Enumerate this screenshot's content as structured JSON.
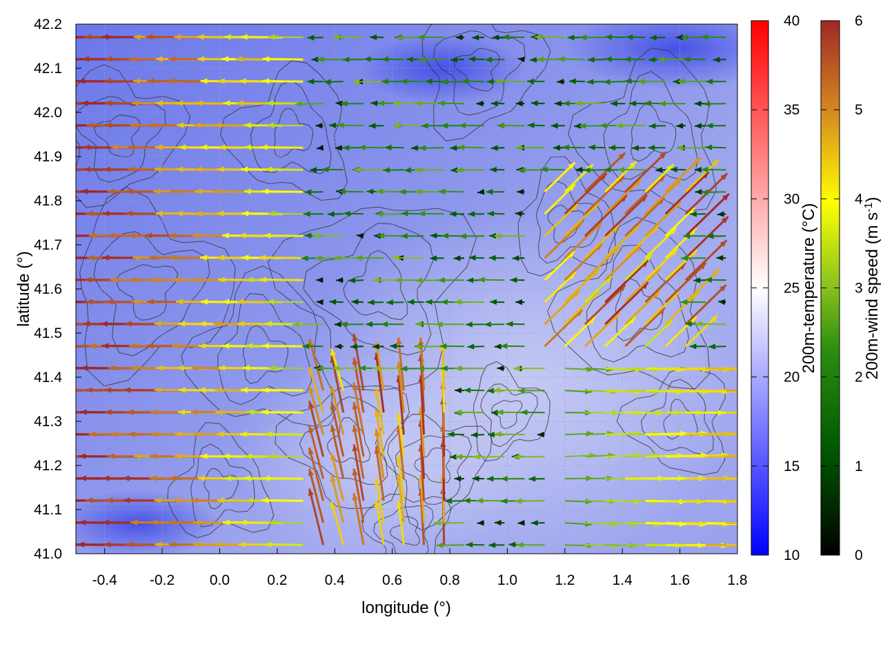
{
  "chart_data": {
    "type": "heatmap",
    "title": "",
    "xlabel": "longitude (°)",
    "ylabel": "latitude (°)",
    "xlim": [
      -0.5,
      1.8
    ],
    "ylim": [
      41.0,
      42.2
    ],
    "x_ticks": [
      -0.4,
      -0.2,
      0.0,
      0.2,
      0.4,
      0.6,
      0.8,
      1.0,
      1.2,
      1.4,
      1.6,
      1.8
    ],
    "x_tick_labels": [
      "-0.4",
      "-0.2",
      "0.0",
      "0.2",
      "0.4",
      "0.6",
      "0.8",
      "1.0",
      "1.2",
      "1.4",
      "1.6",
      "1.8"
    ],
    "y_ticks": [
      41.0,
      41.1,
      41.2,
      41.3,
      41.4,
      41.5,
      41.6,
      41.7,
      41.8,
      41.9,
      42.0,
      42.1,
      42.2
    ],
    "y_tick_labels": [
      "41.0",
      "41.1",
      "41.2",
      "41.3",
      "41.4",
      "41.5",
      "41.6",
      "41.7",
      "41.8",
      "41.9",
      "42.0",
      "42.1",
      "42.2"
    ],
    "grid": true,
    "layers": [
      {
        "kind": "colormap",
        "variable": "200m-temperature",
        "units": "°C",
        "approx_range": [
          15,
          22
        ]
      },
      {
        "kind": "contour",
        "variable": "terrain elevation",
        "color": "#333333"
      },
      {
        "kind": "vector",
        "variable": "200m-wind",
        "units": "m s-1",
        "regimes": [
          {
            "region": "west (lon -0.5 to 0.3)",
            "direction": "from east (arrows pointing west)",
            "speed": "3-6"
          },
          {
            "region": "center-north",
            "direction": "from east",
            "speed": "0.5-3"
          },
          {
            "region": "southeast (lon 1.2 to 1.8, lat 41.0 to 41.4)",
            "direction": "from west (arrows pointing east)",
            "speed": "2-4.5"
          },
          {
            "region": "east (lon 1.2 to 1.6, lat 41.4 to 41.8)",
            "direction": "from southwest (arrows pointing northeast)",
            "speed": "4-6"
          },
          {
            "region": "south-center (lon 0.3 to 0.8, lat 41.0 to 41.4)",
            "direction": "from south (arrows pointing north)",
            "speed": "4-6"
          }
        ]
      }
    ],
    "colorbars": [
      {
        "label": "200m-temperature (°C)",
        "min": 10,
        "max": 40,
        "ticks": [
          10,
          15,
          20,
          25,
          30,
          35,
          40
        ],
        "tick_labels": [
          "10",
          "15",
          "20",
          "25",
          "30",
          "35",
          "40"
        ],
        "colors": [
          "#0000ff",
          "#ffffff",
          "#ff0000"
        ]
      },
      {
        "label_main": "200m-wind speed (m s",
        "label_sup": "-1",
        "label_end": ")",
        "min": 0,
        "max": 6,
        "ticks": [
          0,
          1,
          2,
          3,
          4,
          5,
          6
        ],
        "tick_labels": [
          "0",
          "1",
          "2",
          "3",
          "4",
          "5",
          "6"
        ],
        "colors": [
          "#000000",
          "#006400",
          "#228b22",
          "#8dc020",
          "#ffff00",
          "#daa520",
          "#c06020",
          "#a52a2a"
        ]
      }
    ]
  }
}
